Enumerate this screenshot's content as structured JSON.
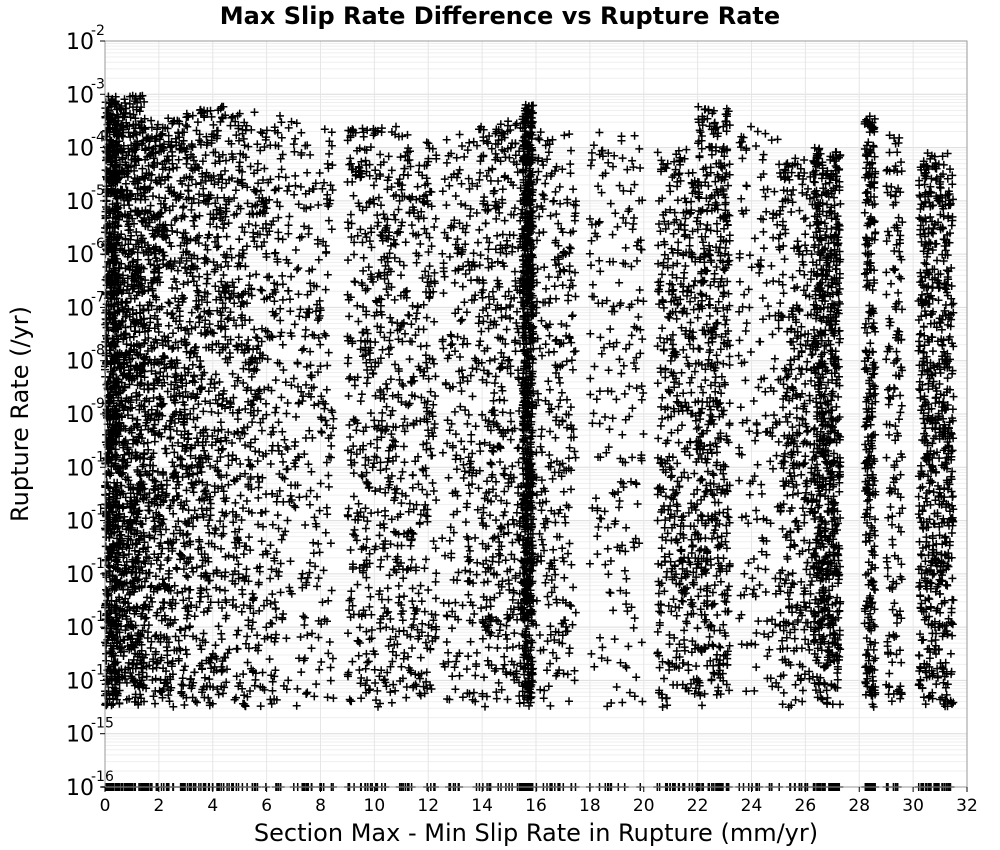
{
  "chart_data": {
    "type": "scatter",
    "title": "Max Slip Rate Difference vs Rupture Rate",
    "xlabel": "Section Max - Min Slip Rate in Rupture (mm/yr)",
    "ylabel": "Rupture Rate (/yr)",
    "xlim": [
      0,
      32
    ],
    "ylim": [
      1e-16,
      0.01
    ],
    "yscale": "log",
    "grid": true,
    "marker": "+",
    "marker_color": "#000000",
    "x_ticks": [
      "0",
      "2",
      "4",
      "6",
      "8",
      "10",
      "12",
      "14",
      "16",
      "18",
      "20",
      "22",
      "24",
      "26",
      "28",
      "30",
      "32"
    ],
    "x_tick_values": [
      0,
      2,
      4,
      6,
      8,
      10,
      12,
      14,
      16,
      18,
      20,
      22,
      24,
      26,
      28,
      30,
      32
    ],
    "y_ticks": [
      {
        "base": "10",
        "exp": "-16",
        "value": 1e-16
      },
      {
        "base": "10",
        "exp": "-15",
        "value": 1e-15
      },
      {
        "base": "10",
        "exp": "-14",
        "value": 1e-14
      },
      {
        "base": "10",
        "exp": "-13",
        "value": 1e-13
      },
      {
        "base": "10",
        "exp": "-12",
        "value": 1e-12
      },
      {
        "base": "10",
        "exp": "-11",
        "value": 1e-11
      },
      {
        "base": "10",
        "exp": "-10",
        "value": 1e-10
      },
      {
        "base": "10",
        "exp": "-9",
        "value": 1e-09
      },
      {
        "base": "10",
        "exp": "-8",
        "value": 1e-08
      },
      {
        "base": "10",
        "exp": "-7",
        "value": 1e-07
      },
      {
        "base": "10",
        "exp": "-6",
        "value": 1e-06
      },
      {
        "base": "10",
        "exp": "-5",
        "value": 1e-05
      },
      {
        "base": "10",
        "exp": "-4",
        "value": 0.0001
      },
      {
        "base": "10",
        "exp": "-3",
        "value": 0.001
      },
      {
        "base": "10",
        "exp": "-2",
        "value": 0.01
      }
    ],
    "clusters": [
      {
        "x_min": 0.0,
        "x_max": 0.5,
        "logy_min": -16,
        "logy_max": -3.0,
        "density": 1.0
      },
      {
        "x_min": 0.5,
        "x_max": 1.5,
        "logy_min": -16,
        "logy_max": -3.0,
        "density": 1.0
      },
      {
        "x_min": 1.5,
        "x_max": 3.0,
        "logy_min": -16,
        "logy_max": -3.4,
        "density": 0.85
      },
      {
        "x_min": 3.0,
        "x_max": 4.5,
        "logy_min": -16,
        "logy_max": -3.2,
        "density": 0.7
      },
      {
        "x_min": 4.5,
        "x_max": 6.5,
        "logy_min": -16,
        "logy_max": -3.3,
        "density": 0.6
      },
      {
        "x_min": 6.5,
        "x_max": 8.5,
        "logy_min": -16,
        "logy_max": -3.5,
        "density": 0.35
      },
      {
        "x_min": 9.0,
        "x_max": 10.5,
        "logy_min": -16,
        "logy_max": -3.6,
        "density": 0.45
      },
      {
        "x_min": 10.5,
        "x_max": 12.3,
        "logy_min": -16,
        "logy_max": -3.6,
        "density": 0.5
      },
      {
        "x_min": 12.5,
        "x_max": 14.0,
        "logy_min": -16,
        "logy_max": -3.6,
        "density": 0.3
      },
      {
        "x_min": 14.0,
        "x_max": 15.5,
        "logy_min": -16,
        "logy_max": -3.5,
        "density": 0.5
      },
      {
        "x_min": 15.5,
        "x_max": 15.9,
        "logy_min": -16,
        "logy_max": -3.2,
        "density": 1.0
      },
      {
        "x_min": 16.0,
        "x_max": 17.5,
        "logy_min": -16,
        "logy_max": -3.7,
        "density": 0.35
      },
      {
        "x_min": 18.0,
        "x_max": 20.0,
        "logy_min": -16,
        "logy_max": -3.7,
        "density": 0.25
      },
      {
        "x_min": 20.5,
        "x_max": 22.0,
        "logy_min": -16,
        "logy_max": -4.0,
        "density": 0.55
      },
      {
        "x_min": 22.0,
        "x_max": 23.2,
        "logy_min": -16,
        "logy_max": -3.2,
        "density": 0.65
      },
      {
        "x_min": 23.5,
        "x_max": 25.0,
        "logy_min": -16,
        "logy_max": -3.6,
        "density": 0.2
      },
      {
        "x_min": 25.0,
        "x_max": 26.3,
        "logy_min": -16,
        "logy_max": -4.2,
        "density": 0.45
      },
      {
        "x_min": 26.3,
        "x_max": 27.3,
        "logy_min": -16,
        "logy_max": -4.0,
        "density": 0.95
      },
      {
        "x_min": 28.2,
        "x_max": 28.6,
        "logy_min": -16,
        "logy_max": -3.4,
        "density": 0.4
      },
      {
        "x_min": 29.0,
        "x_max": 29.6,
        "logy_min": -16,
        "logy_max": -3.6,
        "density": 0.2
      },
      {
        "x_min": 30.2,
        "x_max": 31.5,
        "logy_min": -16,
        "logy_max": -4.1,
        "density": 0.85
      }
    ]
  }
}
